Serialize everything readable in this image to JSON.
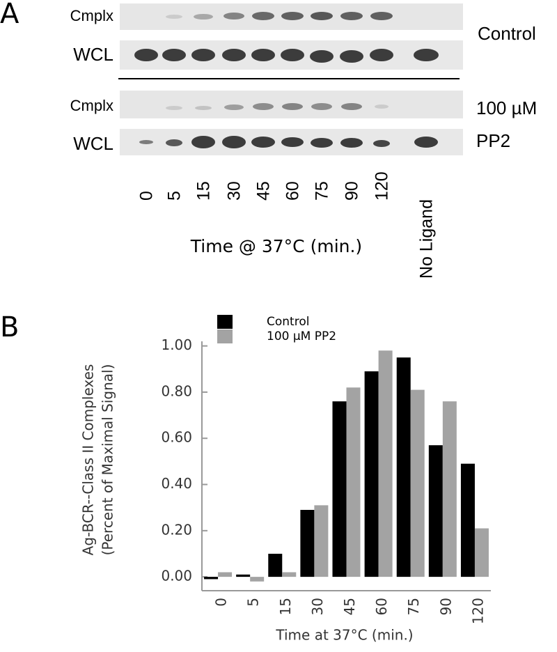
{
  "blot": {
    "panel_label": "A",
    "rows": [
      "Cmplx",
      "WCL",
      "Cmplx",
      "WCL"
    ],
    "conditions": [
      "Control",
      "100 µM",
      "PP2"
    ],
    "lanes": [
      "0",
      "5",
      "15",
      "30",
      "45",
      "60",
      "75",
      "90",
      "120",
      "No Ligand"
    ],
    "xlabel": "Time @ 37°C (min.)"
  },
  "chart_data": {
    "type": "bar",
    "panel_label": "B",
    "xlabel": "Time at 37°C (min.)",
    "ylabel": [
      "Ag-BCR--Class II Complexes",
      "(Percent of Maximal Signal)"
    ],
    "categories": [
      "0",
      "5",
      "15",
      "30",
      "45",
      "60",
      "75",
      "90",
      "120"
    ],
    "series": [
      {
        "name": "Control",
        "color": "#000000",
        "values": [
          -0.01,
          0.01,
          0.1,
          0.29,
          0.76,
          0.89,
          0.95,
          0.57,
          0.49
        ]
      },
      {
        "name": "100 µM PP2",
        "color": "#a3a3a3",
        "values": [
          0.02,
          -0.02,
          0.02,
          0.31,
          0.82,
          0.98,
          0.81,
          0.76,
          0.21
        ]
      }
    ],
    "ylim": [
      -0.06,
      1.02
    ],
    "yticks": [
      {
        "value": 0,
        "label": "0.00"
      },
      {
        "value": 0.2,
        "label": "0.20"
      },
      {
        "value": 0.4,
        "label": "0.40"
      },
      {
        "value": 0.6,
        "label": "0.60"
      },
      {
        "value": 0.8,
        "label": "0.80"
      },
      {
        "value": 1,
        "label": "1.00"
      }
    ],
    "legend": "top-left"
  }
}
